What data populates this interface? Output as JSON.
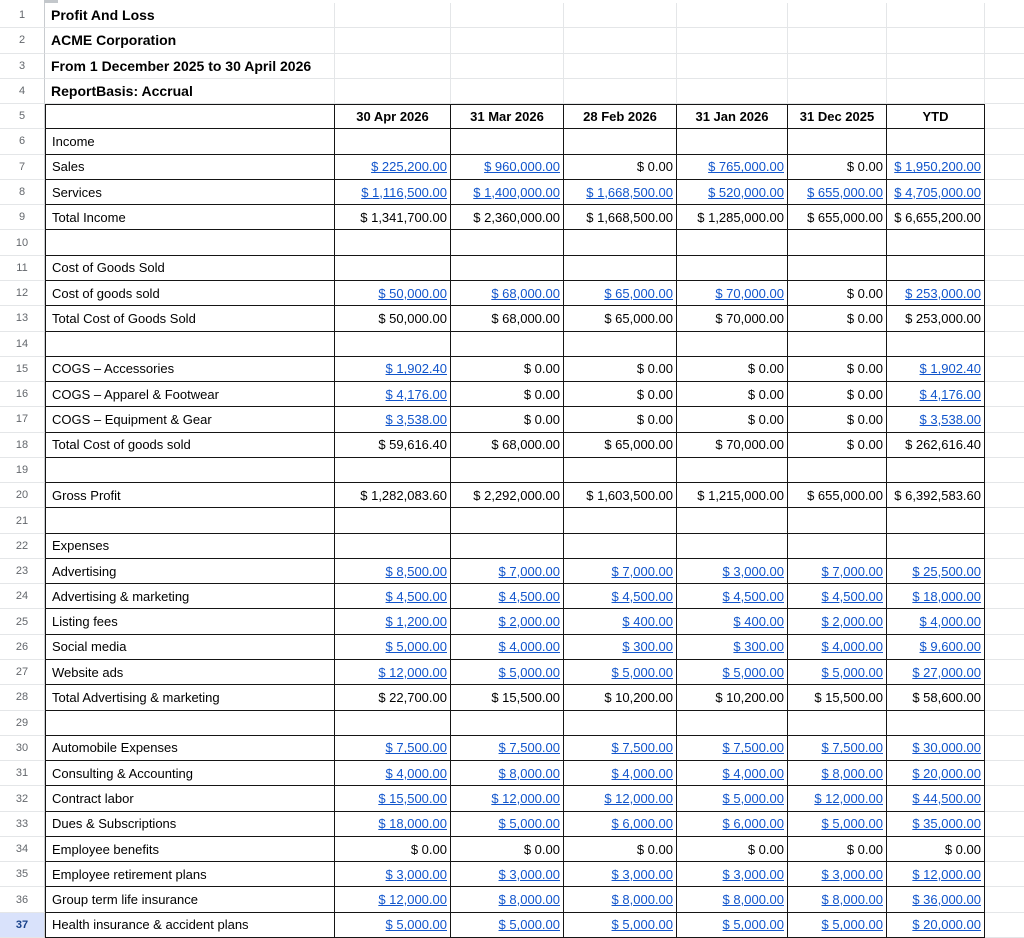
{
  "sheet": {
    "titles": [
      {
        "text": "Profit And Loss"
      },
      {
        "text": "ACME Corporation"
      },
      {
        "text": "From 1 December 2025 to 30 April 2026"
      },
      {
        "text": "ReportBasis: Accrual"
      }
    ],
    "columns": [
      "30 Apr 2026",
      "31 Mar 2026",
      "28 Feb 2026",
      "31 Jan 2026",
      "31 Dec 2025",
      "YTD"
    ],
    "row_numbers": {
      "first": 1,
      "last": 37,
      "selected": 37
    },
    "colors": {
      "link": "#1155cc",
      "table_border": "#151515",
      "gridline": "#e4e6e8",
      "selected_row_bg": "#d9e2fb",
      "selected_row_text": "#17418a"
    },
    "rows": [
      {
        "n": 6,
        "label": "Income",
        "cells": []
      },
      {
        "n": 7,
        "label": "Sales",
        "cells": [
          [
            "$ 225,200.00",
            1
          ],
          [
            "$ 960,000.00",
            1
          ],
          [
            "$ 0.00",
            0
          ],
          [
            "$ 765,000.00",
            1
          ],
          [
            "$ 0.00",
            0
          ],
          [
            "$ 1,950,200.00",
            1
          ]
        ]
      },
      {
        "n": 8,
        "label": "Services",
        "cells": [
          [
            "$ 1,116,500.00",
            1
          ],
          [
            "$ 1,400,000.00",
            1
          ],
          [
            "$ 1,668,500.00",
            1
          ],
          [
            "$ 520,000.00",
            1
          ],
          [
            "$ 655,000.00",
            1
          ],
          [
            "$ 4,705,000.00",
            1
          ]
        ]
      },
      {
        "n": 9,
        "label": "Total Income",
        "cells": [
          [
            "$ 1,341,700.00",
            0
          ],
          [
            "$ 2,360,000.00",
            0
          ],
          [
            "$ 1,668,500.00",
            0
          ],
          [
            "$ 1,285,000.00",
            0
          ],
          [
            "$ 655,000.00",
            0
          ],
          [
            "$ 6,655,200.00",
            0
          ]
        ]
      },
      {
        "n": 10,
        "label": "",
        "cells": []
      },
      {
        "n": 11,
        "label": "Cost of Goods Sold",
        "cells": []
      },
      {
        "n": 12,
        "label": "Cost of goods sold",
        "cells": [
          [
            "$ 50,000.00",
            1
          ],
          [
            "$ 68,000.00",
            1
          ],
          [
            "$ 65,000.00",
            1
          ],
          [
            "$ 70,000.00",
            1
          ],
          [
            "$ 0.00",
            0
          ],
          [
            "$ 253,000.00",
            1
          ]
        ]
      },
      {
        "n": 13,
        "label": "Total Cost of Goods Sold",
        "cells": [
          [
            "$ 50,000.00",
            0
          ],
          [
            "$ 68,000.00",
            0
          ],
          [
            "$ 65,000.00",
            0
          ],
          [
            "$ 70,000.00",
            0
          ],
          [
            "$ 0.00",
            0
          ],
          [
            "$ 253,000.00",
            0
          ]
        ]
      },
      {
        "n": 14,
        "label": "",
        "cells": []
      },
      {
        "n": 15,
        "label": "COGS – Accessories",
        "cells": [
          [
            "$ 1,902.40",
            1
          ],
          [
            "$ 0.00",
            0
          ],
          [
            "$ 0.00",
            0
          ],
          [
            "$ 0.00",
            0
          ],
          [
            "$ 0.00",
            0
          ],
          [
            "$ 1,902.40",
            1
          ]
        ]
      },
      {
        "n": 16,
        "label": "COGS – Apparel & Footwear",
        "cells": [
          [
            "$ 4,176.00",
            1
          ],
          [
            "$ 0.00",
            0
          ],
          [
            "$ 0.00",
            0
          ],
          [
            "$ 0.00",
            0
          ],
          [
            "$ 0.00",
            0
          ],
          [
            "$ 4,176.00",
            1
          ]
        ]
      },
      {
        "n": 17,
        "label": "COGS – Equipment & Gear",
        "cells": [
          [
            "$ 3,538.00",
            1
          ],
          [
            "$ 0.00",
            0
          ],
          [
            "$ 0.00",
            0
          ],
          [
            "$ 0.00",
            0
          ],
          [
            "$ 0.00",
            0
          ],
          [
            "$ 3,538.00",
            1
          ]
        ]
      },
      {
        "n": 18,
        "label": "Total Cost of goods sold",
        "cells": [
          [
            "$ 59,616.40",
            0
          ],
          [
            "$ 68,000.00",
            0
          ],
          [
            "$ 65,000.00",
            0
          ],
          [
            "$ 70,000.00",
            0
          ],
          [
            "$ 0.00",
            0
          ],
          [
            "$ 262,616.40",
            0
          ]
        ]
      },
      {
        "n": 19,
        "label": "",
        "cells": []
      },
      {
        "n": 20,
        "label": "Gross Profit",
        "cells": [
          [
            "$ 1,282,083.60",
            0
          ],
          [
            "$ 2,292,000.00",
            0
          ],
          [
            "$ 1,603,500.00",
            0
          ],
          [
            "$ 1,215,000.00",
            0
          ],
          [
            "$ 655,000.00",
            0
          ],
          [
            "$ 6,392,583.60",
            0
          ]
        ]
      },
      {
        "n": 21,
        "label": "",
        "cells": []
      },
      {
        "n": 22,
        "label": "Expenses",
        "cells": []
      },
      {
        "n": 23,
        "label": "Advertising",
        "cells": [
          [
            "$ 8,500.00",
            1
          ],
          [
            "$ 7,000.00",
            1
          ],
          [
            "$ 7,000.00",
            1
          ],
          [
            "$ 3,000.00",
            1
          ],
          [
            "$ 7,000.00",
            1
          ],
          [
            "$ 25,500.00",
            1
          ]
        ]
      },
      {
        "n": 24,
        "label": "Advertising & marketing",
        "cells": [
          [
            "$ 4,500.00",
            1
          ],
          [
            "$ 4,500.00",
            1
          ],
          [
            "$ 4,500.00",
            1
          ],
          [
            "$ 4,500.00",
            1
          ],
          [
            "$ 4,500.00",
            1
          ],
          [
            "$ 18,000.00",
            1
          ]
        ]
      },
      {
        "n": 25,
        "label": "Listing fees",
        "cells": [
          [
            "$ 1,200.00",
            1
          ],
          [
            "$ 2,000.00",
            1
          ],
          [
            "$ 400.00",
            1
          ],
          [
            "$ 400.00",
            1
          ],
          [
            "$ 2,000.00",
            1
          ],
          [
            "$ 4,000.00",
            1
          ]
        ]
      },
      {
        "n": 26,
        "label": "Social media",
        "cells": [
          [
            "$ 5,000.00",
            1
          ],
          [
            "$ 4,000.00",
            1
          ],
          [
            "$ 300.00",
            1
          ],
          [
            "$ 300.00",
            1
          ],
          [
            "$ 4,000.00",
            1
          ],
          [
            "$ 9,600.00",
            1
          ]
        ]
      },
      {
        "n": 27,
        "label": "Website ads",
        "cells": [
          [
            "$ 12,000.00",
            1
          ],
          [
            "$ 5,000.00",
            1
          ],
          [
            "$ 5,000.00",
            1
          ],
          [
            "$ 5,000.00",
            1
          ],
          [
            "$ 5,000.00",
            1
          ],
          [
            "$ 27,000.00",
            1
          ]
        ]
      },
      {
        "n": 28,
        "label": "Total Advertising & marketing",
        "cells": [
          [
            "$ 22,700.00",
            0
          ],
          [
            "$ 15,500.00",
            0
          ],
          [
            "$ 10,200.00",
            0
          ],
          [
            "$ 10,200.00",
            0
          ],
          [
            "$ 15,500.00",
            0
          ],
          [
            "$ 58,600.00",
            0
          ]
        ]
      },
      {
        "n": 29,
        "label": "",
        "cells": []
      },
      {
        "n": 30,
        "label": "Automobile Expenses",
        "cells": [
          [
            "$ 7,500.00",
            1
          ],
          [
            "$ 7,500.00",
            1
          ],
          [
            "$ 7,500.00",
            1
          ],
          [
            "$ 7,500.00",
            1
          ],
          [
            "$ 7,500.00",
            1
          ],
          [
            "$ 30,000.00",
            1
          ]
        ]
      },
      {
        "n": 31,
        "label": "Consulting & Accounting",
        "cells": [
          [
            "$ 4,000.00",
            1
          ],
          [
            "$ 8,000.00",
            1
          ],
          [
            "$ 4,000.00",
            1
          ],
          [
            "$ 4,000.00",
            1
          ],
          [
            "$ 8,000.00",
            1
          ],
          [
            "$ 20,000.00",
            1
          ]
        ]
      },
      {
        "n": 32,
        "label": "Contract labor",
        "cells": [
          [
            "$ 15,500.00",
            1
          ],
          [
            "$ 12,000.00",
            1
          ],
          [
            "$ 12,000.00",
            1
          ],
          [
            "$ 5,000.00",
            1
          ],
          [
            "$ 12,000.00",
            1
          ],
          [
            "$ 44,500.00",
            1
          ]
        ]
      },
      {
        "n": 33,
        "label": "Dues & Subscriptions",
        "cells": [
          [
            "$ 18,000.00",
            1
          ],
          [
            "$ 5,000.00",
            1
          ],
          [
            "$ 6,000.00",
            1
          ],
          [
            "$ 6,000.00",
            1
          ],
          [
            "$ 5,000.00",
            1
          ],
          [
            "$ 35,000.00",
            1
          ]
        ]
      },
      {
        "n": 34,
        "label": "Employee benefits",
        "cells": [
          [
            "$ 0.00",
            0
          ],
          [
            "$ 0.00",
            0
          ],
          [
            "$ 0.00",
            0
          ],
          [
            "$ 0.00",
            0
          ],
          [
            "$ 0.00",
            0
          ],
          [
            "$ 0.00",
            0
          ]
        ]
      },
      {
        "n": 35,
        "label": "Employee retirement plans",
        "cells": [
          [
            "$ 3,000.00",
            1
          ],
          [
            "$ 3,000.00",
            1
          ],
          [
            "$ 3,000.00",
            1
          ],
          [
            "$ 3,000.00",
            1
          ],
          [
            "$ 3,000.00",
            1
          ],
          [
            "$ 12,000.00",
            1
          ]
        ]
      },
      {
        "n": 36,
        "label": "Group term life insurance",
        "cells": [
          [
            "$ 12,000.00",
            1
          ],
          [
            "$ 8,000.00",
            1
          ],
          [
            "$ 8,000.00",
            1
          ],
          [
            "$ 8,000.00",
            1
          ],
          [
            "$ 8,000.00",
            1
          ],
          [
            "$ 36,000.00",
            1
          ]
        ]
      },
      {
        "n": 37,
        "label": "Health insurance & accident plans",
        "cells": [
          [
            "$ 5,000.00",
            1
          ],
          [
            "$ 5,000.00",
            1
          ],
          [
            "$ 5,000.00",
            1
          ],
          [
            "$ 5,000.00",
            1
          ],
          [
            "$ 5,000.00",
            1
          ],
          [
            "$ 20,000.00",
            1
          ]
        ]
      }
    ]
  }
}
